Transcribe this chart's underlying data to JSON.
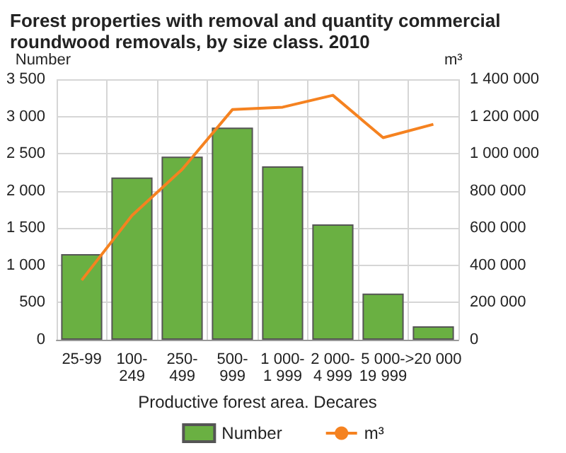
{
  "chart_data": {
    "type": "bar",
    "title": "Forest properties with removal and quantity commercial roundwood removals, by size class. 2010",
    "ylabel": "Number",
    "y2label": "m³",
    "xlabel": "Productive forest area. Decares",
    "categories": [
      "25-99",
      "100-\n249",
      "250-\n499",
      "500-\n999",
      "1 000-\n1 999",
      "2 000-\n4 999",
      "5 000-\n19 999",
      ">20 000"
    ],
    "series": [
      {
        "name": "Number",
        "color": "#6ab042",
        "values": [
          1150,
          2180,
          2460,
          2850,
          2330,
          1550,
          620,
          180
        ]
      },
      {
        "name": "m³",
        "type": "line",
        "axis": "y2",
        "color": "#f58220",
        "values": [
          320000,
          668000,
          916000,
          1237000,
          1250000,
          1314000,
          1086000,
          1158000
        ]
      }
    ],
    "ylim": [
      0,
      3500
    ],
    "yticks": [
      {
        "value": 0,
        "label": "0"
      },
      {
        "value": 500,
        "label": "500"
      },
      {
        "value": 1000,
        "label": "1 000"
      },
      {
        "value": 1500,
        "label": "1 500"
      },
      {
        "value": 2000,
        "label": "2 000"
      },
      {
        "value": 2500,
        "label": "2 500"
      },
      {
        "value": 3000,
        "label": "3 000"
      },
      {
        "value": 3500,
        "label": "3 500"
      }
    ],
    "y2lim": [
      0,
      1400000
    ],
    "y2ticks": [
      {
        "value": 0,
        "label": "0"
      },
      {
        "value": 200000,
        "label": "200 000"
      },
      {
        "value": 400000,
        "label": "400 000"
      },
      {
        "value": 600000,
        "label": "600 000"
      },
      {
        "value": 800000,
        "label": "800 000"
      },
      {
        "value": 1000000,
        "label": "1 000 000"
      },
      {
        "value": 1200000,
        "label": "1 200 000"
      },
      {
        "value": 1400000,
        "label": "1 400 000"
      }
    ],
    "grid": true,
    "legend": "bottom",
    "marker": "none"
  }
}
